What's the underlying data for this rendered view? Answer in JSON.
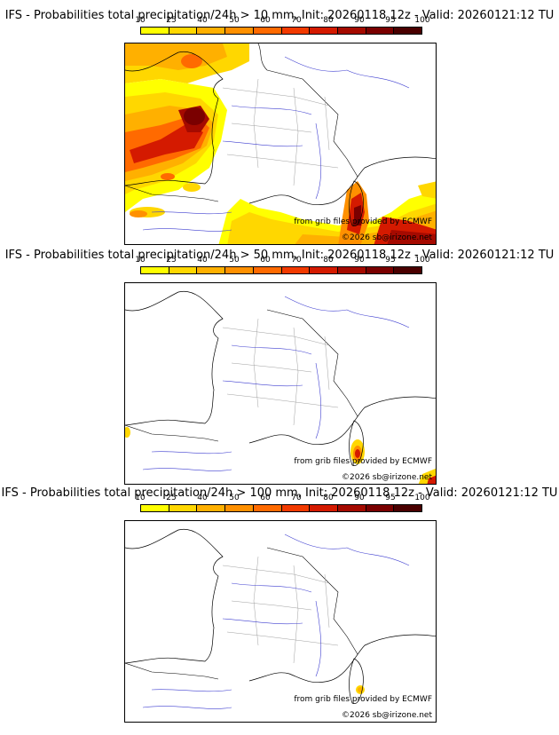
{
  "panels": [
    {
      "title": "IFS - Probabilities total precipitation/24h > 10 mm, Init: 20260118 12z - Valid: 20260121:12 TU",
      "threshold_mm": 10,
      "credit_grib": "from grib files provided by ECMWF",
      "credit_copyright": "©2026 sb@irizone.net"
    },
    {
      "title": "IFS - Probabilities total precipitation/24h > 50 mm, Init: 20260118 12z - Valid: 20260121:12 TU",
      "threshold_mm": 50,
      "credit_grib": "from grib files provided by ECMWF",
      "credit_copyright": "©2026 sb@irizone.net"
    },
    {
      "title": "IFS - Probabilities total precipitation/24h > 100 mm, Init: 20260118 12z - Valid: 20260121:12 TU",
      "threshold_mm": 100,
      "credit_grib": "from grib files provided by ECMWF",
      "credit_copyright": "©2026 sb@irizone.net"
    }
  ],
  "legend": {
    "labels": [
      "10",
      "25",
      "40",
      "50",
      "60",
      "70",
      "80",
      "90",
      "95",
      "100"
    ],
    "colors": [
      "#ffff00",
      "#ffd700",
      "#ffb000",
      "#ff9000",
      "#ff6a00",
      "#f23a00",
      "#d41a00",
      "#a50a00",
      "#7a0000",
      "#4a0000"
    ]
  }
}
